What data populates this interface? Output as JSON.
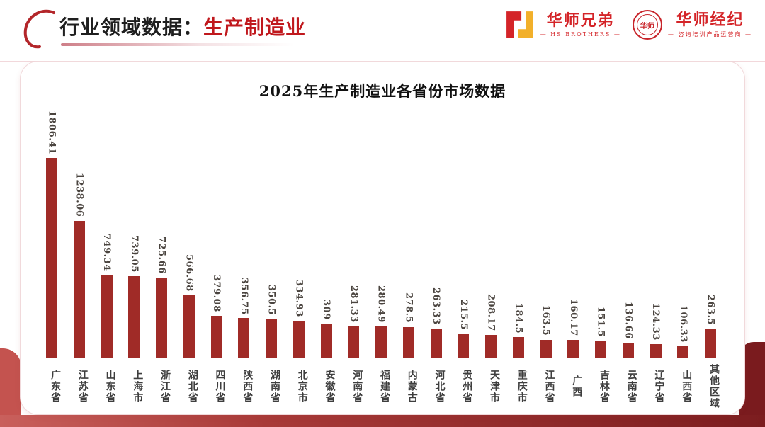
{
  "header": {
    "title_black": "行业领域数据：",
    "title_red": "生产制造业",
    "logo_hs_brothers": {
      "name": "华师兄弟",
      "sub": "— HS BROTHERS —"
    },
    "logo_hs_agency": {
      "name": "华师经纪",
      "sub": "— 咨询培训产品运营商 —",
      "seal_text": "华师"
    }
  },
  "chart_data": {
    "type": "bar",
    "title": "2025年生产制造业各省份市场数据",
    "categories": [
      "广东省",
      "江苏省",
      "山东省",
      "上海市",
      "浙江省",
      "湖北省",
      "四川省",
      "陕西省",
      "湖南省",
      "北京市",
      "安徽省",
      "河南省",
      "福建省",
      "内蒙古",
      "河北省",
      "贵州省",
      "天津市",
      "重庆市",
      "江西省",
      "广西",
      "吉林省",
      "云南省",
      "辽宁省",
      "山西省",
      "其他区域"
    ],
    "values": [
      1806.41,
      1238.06,
      749.34,
      739.05,
      725.66,
      566.68,
      379.08,
      356.75,
      350.5,
      334.93,
      309,
      281.33,
      280.49,
      278.5,
      263.33,
      215.5,
      208.17,
      184.5,
      163.5,
      160.17,
      151.5,
      136.66,
      124.33,
      106.33,
      263.5
    ],
    "xlabel": "",
    "ylabel": "",
    "ylim": [
      0,
      1900
    ],
    "grid": false,
    "legend": "none",
    "bar_color": "#a02b27",
    "value_labels": "rotated-90-above-bars",
    "category_labels": "vertical-upright"
  },
  "colors": {
    "accent_red": "#c0181d",
    "bar_red": "#a02b27",
    "band_gradient_start": "#c9605c",
    "band_gradient_end": "#7c1d1f"
  }
}
